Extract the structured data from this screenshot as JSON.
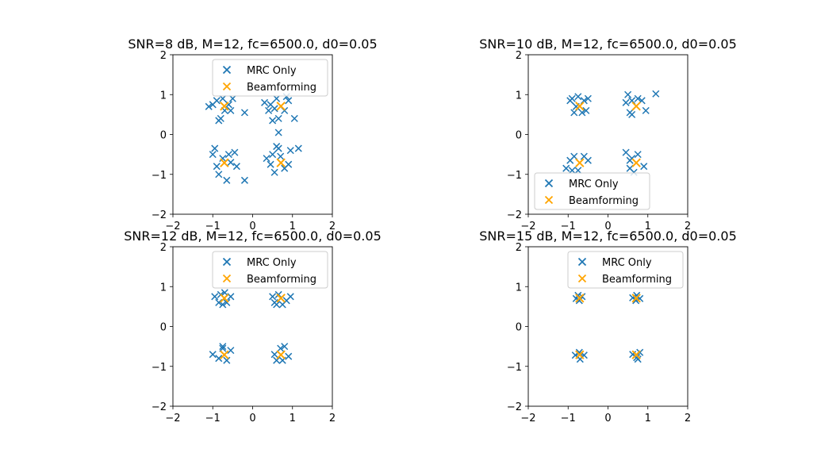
{
  "chart_data": [
    {
      "type": "scatter",
      "title": "SNR=8 dB, M=12, fc=6500.0, d0=0.05",
      "xlim": [
        -2,
        2
      ],
      "ylim": [
        -2,
        2
      ],
      "xticks": [
        "-2",
        "-1",
        "0",
        "1",
        "2"
      ],
      "yticks": [
        "2",
        "1",
        "0",
        "-1",
        "-2"
      ],
      "legend_position": "upper center",
      "series": [
        {
          "name": "MRC Only",
          "color": "#1f77b4",
          "marker": "x",
          "points": [
            [
              -1.1,
              0.7
            ],
            [
              -0.9,
              0.85
            ],
            [
              -0.8,
              0.4
            ],
            [
              -0.7,
              0.6
            ],
            [
              -0.6,
              0.75
            ],
            [
              -0.5,
              0.9
            ],
            [
              -0.85,
              0.35
            ],
            [
              -1.0,
              0.75
            ],
            [
              -0.75,
              0.9
            ],
            [
              -0.55,
              0.6
            ],
            [
              -0.2,
              0.55
            ],
            [
              0.3,
              0.8
            ],
            [
              0.4,
              0.6
            ],
            [
              0.5,
              0.35
            ],
            [
              0.55,
              0.65
            ],
            [
              0.6,
              0.9
            ],
            [
              0.65,
              0.4
            ],
            [
              0.8,
              0.6
            ],
            [
              0.9,
              0.85
            ],
            [
              1.05,
              0.4
            ],
            [
              0.45,
              0.75
            ],
            [
              0.85,
              0.95
            ],
            [
              0.65,
              0.05
            ],
            [
              -1.0,
              -0.5
            ],
            [
              -0.9,
              -0.8
            ],
            [
              -0.85,
              -1.0
            ],
            [
              -0.75,
              -0.6
            ],
            [
              -0.65,
              -1.15
            ],
            [
              -0.55,
              -0.7
            ],
            [
              -0.45,
              -0.45
            ],
            [
              -0.4,
              -0.8
            ],
            [
              -0.2,
              -1.15
            ],
            [
              -0.95,
              -0.35
            ],
            [
              -0.6,
              -0.5
            ],
            [
              0.35,
              -0.6
            ],
            [
              0.45,
              -0.75
            ],
            [
              0.55,
              -0.95
            ],
            [
              0.6,
              -0.3
            ],
            [
              0.7,
              -0.55
            ],
            [
              0.8,
              -0.85
            ],
            [
              0.9,
              -0.75
            ],
            [
              0.95,
              -0.4
            ],
            [
              1.15,
              -0.35
            ],
            [
              0.5,
              -0.5
            ],
            [
              0.65,
              -0.35
            ]
          ]
        },
        {
          "name": "Beamforming",
          "color": "#ffa500",
          "marker": "x",
          "points": [
            [
              -0.71,
              0.71
            ],
            [
              0.71,
              0.71
            ],
            [
              -0.71,
              -0.71
            ],
            [
              0.71,
              -0.71
            ]
          ]
        }
      ]
    },
    {
      "type": "scatter",
      "title": "SNR=10 dB, M=12, fc=6500.0, d0=0.05",
      "xlim": [
        -2,
        2
      ],
      "ylim": [
        -2,
        2
      ],
      "xticks": [
        "-2",
        "-1",
        "0",
        "1",
        "2"
      ],
      "yticks": [
        "2",
        "1",
        "0",
        "-1",
        "-2"
      ],
      "legend_position": "lower center",
      "series": [
        {
          "name": "MRC Only",
          "color": "#1f77b4",
          "marker": "x",
          "points": [
            [
              -0.95,
              0.85
            ],
            [
              -0.9,
              0.9
            ],
            [
              -0.85,
              0.55
            ],
            [
              -0.75,
              0.95
            ],
            [
              -0.6,
              0.85
            ],
            [
              -0.5,
              0.9
            ],
            [
              -0.55,
              0.6
            ],
            [
              -0.8,
              0.7
            ],
            [
              -0.65,
              0.55
            ],
            [
              0.45,
              0.8
            ],
            [
              0.5,
              1.0
            ],
            [
              0.55,
              0.55
            ],
            [
              0.6,
              0.85
            ],
            [
              0.75,
              0.9
            ],
            [
              0.85,
              0.85
            ],
            [
              0.95,
              0.6
            ],
            [
              1.2,
              1.02
            ],
            [
              0.6,
              0.5
            ],
            [
              -1.05,
              -0.85
            ],
            [
              -0.95,
              -0.65
            ],
            [
              -0.85,
              -0.55
            ],
            [
              -0.75,
              -0.9
            ],
            [
              -0.6,
              -0.55
            ],
            [
              -0.5,
              -0.65
            ],
            [
              -0.9,
              -0.9
            ],
            [
              0.45,
              -0.45
            ],
            [
              0.55,
              -0.85
            ],
            [
              0.6,
              -0.6
            ],
            [
              0.75,
              -0.5
            ],
            [
              0.9,
              -0.8
            ],
            [
              0.65,
              -0.95
            ],
            [
              0.55,
              -0.65
            ]
          ]
        },
        {
          "name": "Beamforming",
          "color": "#ffa500",
          "marker": "x",
          "points": [
            [
              -0.71,
              0.71
            ],
            [
              0.71,
              0.71
            ],
            [
              -0.71,
              -0.71
            ],
            [
              0.71,
              -0.71
            ]
          ]
        }
      ]
    },
    {
      "type": "scatter",
      "title": "SNR=12 dB, M=12, fc=6500.0, d0=0.05",
      "xlim": [
        -2,
        2
      ],
      "ylim": [
        -2,
        2
      ],
      "xticks": [
        "-2",
        "-1",
        "0",
        "1",
        "2"
      ],
      "yticks": [
        "2",
        "1",
        "0",
        "-1",
        "-2"
      ],
      "legend_position": "upper right",
      "series": [
        {
          "name": "MRC Only",
          "color": "#1f77b4",
          "marker": "x",
          "points": [
            [
              -0.95,
              0.75
            ],
            [
              -0.85,
              0.6
            ],
            [
              -0.8,
              0.8
            ],
            [
              -0.75,
              0.55
            ],
            [
              -0.65,
              0.6
            ],
            [
              -0.55,
              0.75
            ],
            [
              -0.7,
              0.85
            ],
            [
              0.5,
              0.75
            ],
            [
              0.55,
              0.6
            ],
            [
              0.65,
              0.8
            ],
            [
              0.75,
              0.55
            ],
            [
              0.85,
              0.65
            ],
            [
              0.95,
              0.75
            ],
            [
              0.6,
              0.55
            ],
            [
              -1.0,
              -0.7
            ],
            [
              -0.85,
              -0.8
            ],
            [
              -0.75,
              -0.55
            ],
            [
              -0.65,
              -0.85
            ],
            [
              -0.55,
              -0.6
            ],
            [
              -0.75,
              -0.5
            ],
            [
              0.55,
              -0.7
            ],
            [
              0.6,
              -0.85
            ],
            [
              0.7,
              -0.55
            ],
            [
              0.8,
              -0.5
            ],
            [
              0.9,
              -0.75
            ],
            [
              0.75,
              -0.85
            ]
          ]
        },
        {
          "name": "Beamforming",
          "color": "#ffa500",
          "marker": "x",
          "points": [
            [
              -0.71,
              0.71
            ],
            [
              0.71,
              0.71
            ],
            [
              -0.71,
              -0.71
            ],
            [
              0.71,
              -0.71
            ]
          ]
        }
      ]
    },
    {
      "type": "scatter",
      "title": "SNR=15 dB, M=12, fc=6500.0, d0=0.05",
      "xlim": [
        -2,
        2
      ],
      "ylim": [
        -2,
        2
      ],
      "xticks": [
        "-2",
        "-1",
        "0",
        "1",
        "2"
      ],
      "yticks": [
        "2",
        "1",
        "0",
        "-1",
        "-2"
      ],
      "legend_position": "upper right",
      "series": [
        {
          "name": "MRC Only",
          "color": "#1f77b4",
          "marker": "x",
          "points": [
            [
              -0.8,
              0.7
            ],
            [
              -0.72,
              0.65
            ],
            [
              -0.65,
              0.75
            ],
            [
              -0.75,
              0.78
            ],
            [
              0.62,
              0.72
            ],
            [
              0.7,
              0.65
            ],
            [
              0.8,
              0.7
            ],
            [
              0.72,
              0.78
            ],
            [
              -0.82,
              -0.72
            ],
            [
              -0.7,
              -0.82
            ],
            [
              -0.6,
              -0.72
            ],
            [
              -0.72,
              -0.65
            ],
            [
              0.62,
              -0.7
            ],
            [
              0.72,
              -0.78
            ],
            [
              0.8,
              -0.65
            ],
            [
              0.75,
              -0.82
            ]
          ]
        },
        {
          "name": "Beamforming",
          "color": "#ffa500",
          "marker": "x",
          "points": [
            [
              -0.71,
              0.71
            ],
            [
              0.71,
              0.71
            ],
            [
              -0.71,
              -0.71
            ],
            [
              0.71,
              -0.71
            ]
          ]
        }
      ]
    }
  ]
}
